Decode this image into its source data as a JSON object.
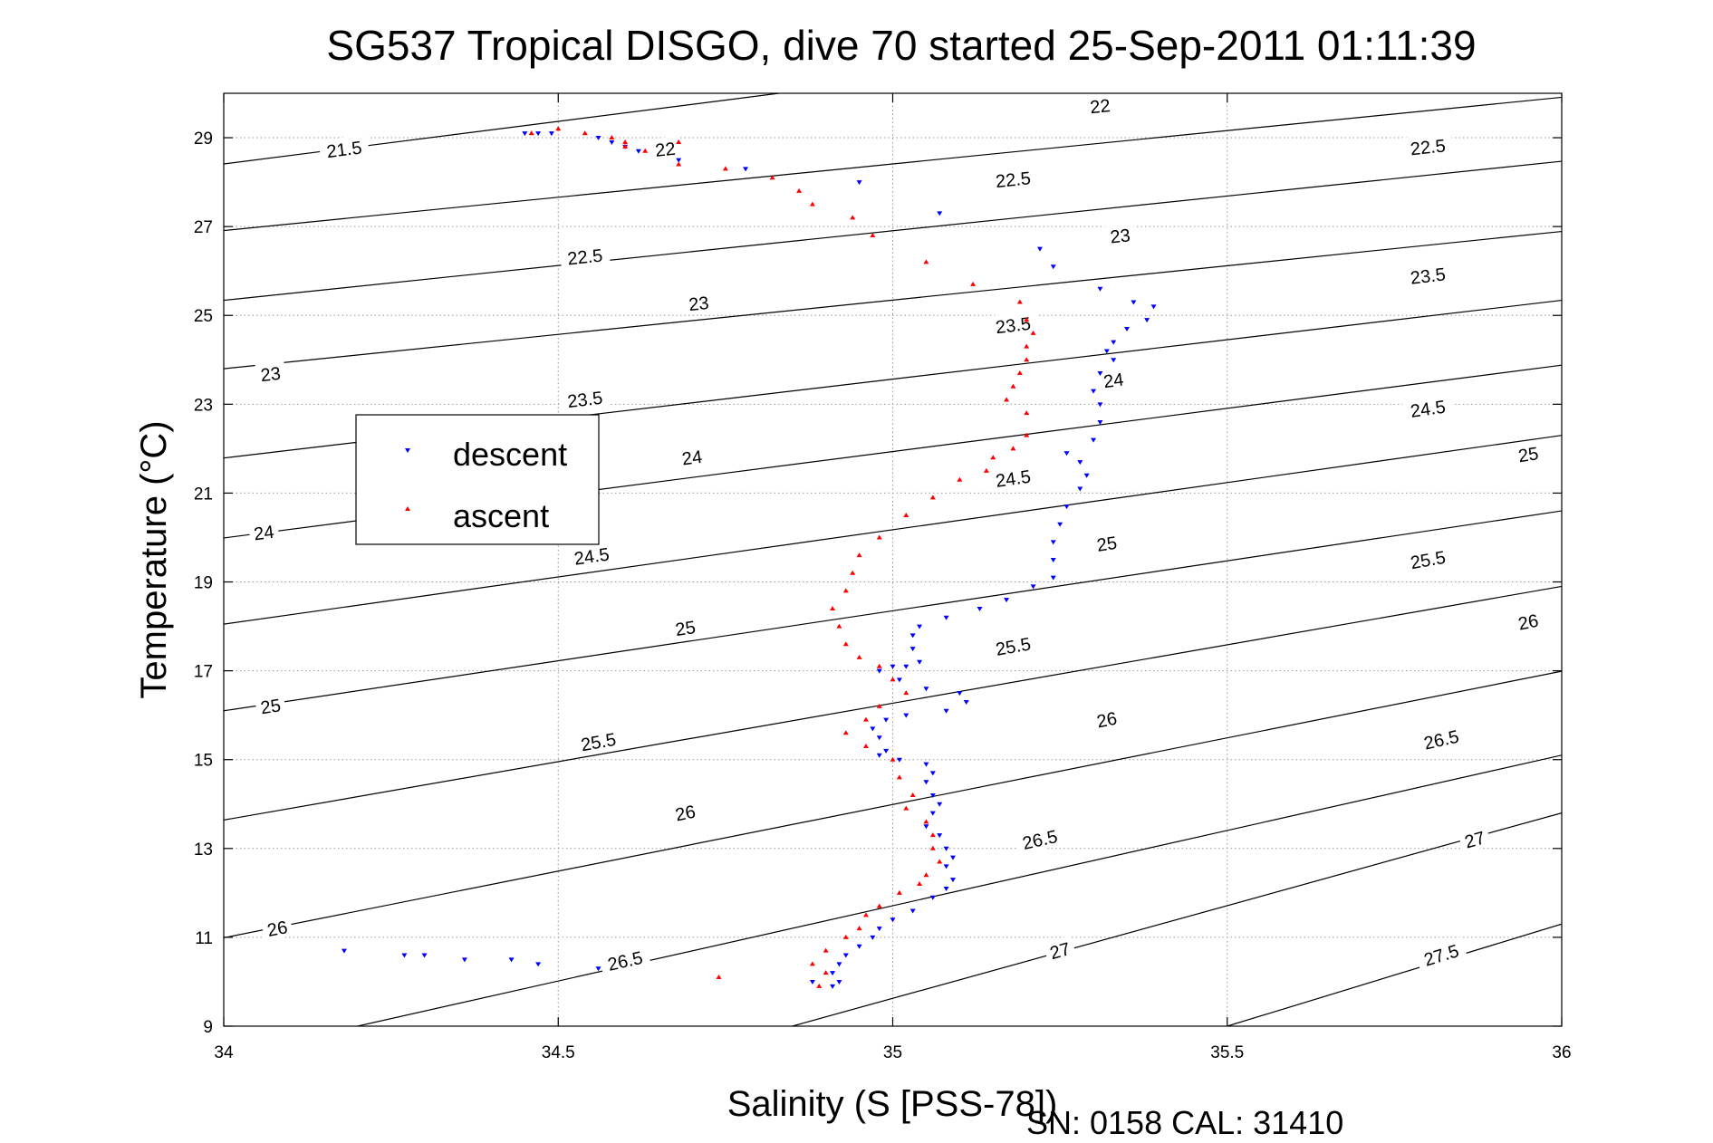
{
  "footer": {
    "serial": "SN: 0158  CAL: 31410"
  },
  "chart_data": {
    "type": "scatter",
    "title": "SG537 Tropical DISGO, dive 70 started 25-Sep-2011 01:11:39",
    "xlabel": "Salinity (S [PSS-78])",
    "ylabel": "Temperature (°C)",
    "xlim": [
      34,
      36
    ],
    "ylim": [
      9,
      30
    ],
    "xticks": [
      34,
      34.5,
      35,
      35.5,
      36
    ],
    "xtick_labels": [
      "34",
      "34.5",
      "35",
      "35.5",
      "36"
    ],
    "yticks": [
      9,
      11,
      13,
      15,
      17,
      19,
      21,
      23,
      25,
      27,
      29
    ],
    "ytick_labels": [
      "9",
      "11",
      "13",
      "15",
      "17",
      "19",
      "21",
      "23",
      "25",
      "27",
      "29"
    ],
    "grid": true,
    "legend": {
      "placement": "center-left",
      "entries": [
        "descent",
        "ascent"
      ]
    },
    "series": [
      {
        "name": "descent",
        "color": "#0000ff",
        "marker": "triangle-down",
        "points": [
          [
            34.45,
            29.1
          ],
          [
            34.47,
            29.1
          ],
          [
            34.49,
            29.1
          ],
          [
            34.56,
            29.0
          ],
          [
            34.58,
            28.9
          ],
          [
            34.6,
            28.8
          ],
          [
            34.62,
            28.7
          ],
          [
            34.68,
            28.5
          ],
          [
            34.78,
            28.3
          ],
          [
            34.95,
            28.0
          ],
          [
            35.07,
            27.3
          ],
          [
            35.22,
            26.5
          ],
          [
            35.24,
            26.1
          ],
          [
            35.31,
            25.6
          ],
          [
            35.36,
            25.3
          ],
          [
            35.39,
            25.2
          ],
          [
            35.38,
            24.9
          ],
          [
            35.35,
            24.7
          ],
          [
            35.33,
            24.4
          ],
          [
            35.32,
            24.2
          ],
          [
            35.33,
            24.0
          ],
          [
            35.31,
            23.7
          ],
          [
            35.3,
            23.3
          ],
          [
            35.31,
            23.0
          ],
          [
            35.31,
            22.6
          ],
          [
            35.3,
            22.2
          ],
          [
            35.26,
            21.9
          ],
          [
            35.28,
            21.7
          ],
          [
            35.29,
            21.4
          ],
          [
            35.28,
            21.1
          ],
          [
            35.26,
            20.7
          ],
          [
            35.25,
            20.3
          ],
          [
            35.24,
            19.9
          ],
          [
            35.24,
            19.5
          ],
          [
            35.24,
            19.1
          ],
          [
            35.21,
            18.9
          ],
          [
            35.17,
            18.6
          ],
          [
            35.13,
            18.4
          ],
          [
            35.08,
            18.2
          ],
          [
            35.04,
            18.0
          ],
          [
            35.03,
            17.8
          ],
          [
            35.03,
            17.5
          ],
          [
            35.04,
            17.2
          ],
          [
            35.02,
            17.1
          ],
          [
            35.0,
            17.1
          ],
          [
            34.98,
            17.0
          ],
          [
            35.01,
            16.8
          ],
          [
            35.05,
            16.6
          ],
          [
            35.1,
            16.5
          ],
          [
            35.11,
            16.3
          ],
          [
            35.08,
            16.1
          ],
          [
            35.02,
            16.0
          ],
          [
            34.99,
            15.9
          ],
          [
            34.97,
            15.7
          ],
          [
            34.98,
            15.5
          ],
          [
            34.99,
            15.2
          ],
          [
            34.98,
            15.1
          ],
          [
            35.01,
            15.0
          ],
          [
            35.05,
            14.9
          ],
          [
            35.06,
            14.7
          ],
          [
            35.05,
            14.5
          ],
          [
            35.06,
            14.2
          ],
          [
            35.07,
            14.0
          ],
          [
            35.06,
            13.8
          ],
          [
            35.05,
            13.5
          ],
          [
            35.07,
            13.3
          ],
          [
            35.08,
            13.0
          ],
          [
            35.09,
            12.8
          ],
          [
            35.08,
            12.6
          ],
          [
            35.09,
            12.3
          ],
          [
            35.08,
            12.1
          ],
          [
            35.06,
            11.9
          ],
          [
            35.03,
            11.6
          ],
          [
            35.0,
            11.4
          ],
          [
            34.98,
            11.2
          ],
          [
            34.97,
            11.0
          ],
          [
            34.95,
            10.8
          ],
          [
            34.93,
            10.6
          ],
          [
            34.92,
            10.4
          ],
          [
            34.91,
            10.2
          ],
          [
            34.92,
            10.0
          ],
          [
            34.91,
            9.9
          ],
          [
            34.88,
            10.0
          ],
          [
            34.56,
            10.3
          ],
          [
            34.47,
            10.4
          ],
          [
            34.43,
            10.5
          ],
          [
            34.36,
            10.5
          ],
          [
            34.3,
            10.6
          ],
          [
            34.27,
            10.6
          ],
          [
            34.18,
            10.7
          ]
        ]
      },
      {
        "name": "ascent",
        "color": "#ff0000",
        "marker": "triangle-up",
        "points": [
          [
            34.46,
            29.1
          ],
          [
            34.5,
            29.2
          ],
          [
            34.54,
            29.1
          ],
          [
            34.58,
            29.0
          ],
          [
            34.6,
            28.9
          ],
          [
            34.6,
            28.8
          ],
          [
            34.63,
            28.7
          ],
          [
            34.68,
            28.9
          ],
          [
            34.68,
            28.4
          ],
          [
            34.75,
            28.3
          ],
          [
            34.82,
            28.1
          ],
          [
            34.86,
            27.8
          ],
          [
            34.88,
            27.5
          ],
          [
            34.94,
            27.2
          ],
          [
            34.97,
            26.8
          ],
          [
            35.05,
            26.2
          ],
          [
            35.12,
            25.7
          ],
          [
            35.19,
            25.3
          ],
          [
            35.2,
            24.9
          ],
          [
            35.21,
            24.6
          ],
          [
            35.2,
            24.3
          ],
          [
            35.2,
            24.0
          ],
          [
            35.19,
            23.7
          ],
          [
            35.18,
            23.4
          ],
          [
            35.17,
            23.1
          ],
          [
            35.2,
            22.8
          ],
          [
            35.2,
            22.3
          ],
          [
            35.18,
            22.0
          ],
          [
            35.15,
            21.8
          ],
          [
            35.14,
            21.5
          ],
          [
            35.1,
            21.3
          ],
          [
            35.06,
            20.9
          ],
          [
            35.02,
            20.5
          ],
          [
            34.98,
            20.0
          ],
          [
            34.95,
            19.6
          ],
          [
            34.94,
            19.2
          ],
          [
            34.93,
            18.8
          ],
          [
            34.91,
            18.4
          ],
          [
            34.92,
            18.0
          ],
          [
            34.93,
            17.6
          ],
          [
            34.95,
            17.3
          ],
          [
            34.98,
            17.1
          ],
          [
            35.0,
            16.8
          ],
          [
            35.02,
            16.5
          ],
          [
            34.98,
            16.2
          ],
          [
            34.96,
            15.9
          ],
          [
            34.93,
            15.6
          ],
          [
            34.96,
            15.3
          ],
          [
            35.0,
            15.0
          ],
          [
            35.01,
            14.6
          ],
          [
            35.03,
            14.2
          ],
          [
            35.02,
            13.9
          ],
          [
            35.05,
            13.6
          ],
          [
            35.06,
            13.3
          ],
          [
            35.06,
            13.0
          ],
          [
            35.07,
            12.7
          ],
          [
            35.05,
            12.4
          ],
          [
            35.04,
            12.2
          ],
          [
            35.01,
            12.0
          ],
          [
            34.98,
            11.7
          ],
          [
            34.96,
            11.5
          ],
          [
            34.95,
            11.2
          ],
          [
            34.93,
            11.0
          ],
          [
            34.9,
            10.7
          ],
          [
            34.88,
            10.4
          ],
          [
            34.9,
            10.2
          ],
          [
            34.89,
            9.9
          ],
          [
            34.74,
            10.1
          ]
        ]
      }
    ],
    "contour_lines": [
      {
        "sigma": "21.5",
        "p1": [
          34.0,
          28.41
        ],
        "p2": [
          34.83,
          30.0
        ],
        "label_at": [
          34.18,
          28.74
        ]
      },
      {
        "sigma": "22",
        "p1": [
          34.0,
          26.91
        ],
        "p2": [
          36.0,
          29.91
        ],
        "label_at": [
          35.31,
          29.71
        ]
      },
      {
        "sigma": "22",
        "p1": [
          34.66,
          28.74
        ],
        "p2": [
          34.66,
          28.74
        ],
        "label_at": [
          34.66,
          28.74
        ],
        "label_only": true
      },
      {
        "sigma": "22.5",
        "p1": [
          34.0,
          25.34
        ],
        "p2": [
          36.0,
          28.47
        ],
        "label_at": [
          34.54,
          26.32
        ]
      },
      {
        "sigma": "22.5",
        "p1": [
          35.18,
          28.06
        ],
        "p2": [
          35.18,
          28.06
        ],
        "label_at": [
          35.18,
          28.06
        ],
        "label_only": true
      },
      {
        "sigma": "22.5",
        "p1": [
          35.8,
          28.79
        ],
        "p2": [
          35.8,
          28.79
        ],
        "label_at": [
          35.8,
          28.79
        ],
        "label_only": true
      },
      {
        "sigma": "23",
        "p1": [
          34.0,
          23.8
        ],
        "p2": [
          36.0,
          26.89
        ],
        "label_at": [
          34.71,
          25.27
        ]
      },
      {
        "sigma": "23",
        "p1": [
          35.34,
          26.79
        ],
        "p2": [
          35.34,
          26.79
        ],
        "label_at": [
          35.34,
          26.79
        ],
        "label_only": true
      },
      {
        "sigma": "23",
        "p1": [
          34.07,
          23.68
        ],
        "p2": [
          34.07,
          23.68
        ],
        "label_at": [
          34.07,
          23.68
        ],
        "label_only": true
      },
      {
        "sigma": "23.5",
        "p1": [
          34.0,
          21.79
        ],
        "p2": [
          36.0,
          25.34
        ],
        "label_at": [
          34.54,
          23.11
        ]
      },
      {
        "sigma": "23.5",
        "p1": [
          35.18,
          24.78
        ],
        "p2": [
          35.18,
          24.78
        ],
        "label_at": [
          35.18,
          24.78
        ],
        "label_only": true
      },
      {
        "sigma": "23.5",
        "p1": [
          35.8,
          25.89
        ],
        "p2": [
          35.8,
          25.89
        ],
        "label_at": [
          35.8,
          25.89
        ],
        "label_only": true
      },
      {
        "sigma": "24",
        "p1": [
          34.0,
          19.99
        ],
        "p2": [
          36.0,
          23.88
        ],
        "label_at": [
          34.7,
          21.8
        ]
      },
      {
        "sigma": "24",
        "p1": [
          35.33,
          23.54
        ],
        "p2": [
          35.33,
          23.54
        ],
        "label_at": [
          35.33,
          23.54
        ],
        "label_only": true
      },
      {
        "sigma": "24",
        "p1": [
          34.06,
          20.11
        ],
        "p2": [
          34.06,
          20.11
        ],
        "label_at": [
          34.06,
          20.11
        ],
        "label_only": true
      },
      {
        "sigma": "24.5",
        "p1": [
          34.0,
          18.05
        ],
        "p2": [
          36.0,
          22.3
        ],
        "label_at": [
          34.55,
          19.58
        ]
      },
      {
        "sigma": "24.5",
        "p1": [
          35.18,
          21.33
        ],
        "p2": [
          35.18,
          21.33
        ],
        "label_at": [
          35.18,
          21.33
        ],
        "label_only": true
      },
      {
        "sigma": "24.5",
        "p1": [
          35.8,
          22.9
        ],
        "p2": [
          35.8,
          22.9
        ],
        "label_at": [
          35.8,
          22.9
        ],
        "label_only": true
      },
      {
        "sigma": "25",
        "p1": [
          34.0,
          16.1
        ],
        "p2": [
          36.0,
          20.6
        ],
        "label_at": [
          34.69,
          17.96
        ]
      },
      {
        "sigma": "25",
        "p1": [
          35.32,
          19.86
        ],
        "p2": [
          35.32,
          19.86
        ],
        "label_at": [
          35.32,
          19.86
        ],
        "label_only": true
      },
      {
        "sigma": "25",
        "p1": [
          35.95,
          21.87
        ],
        "p2": [
          35.95,
          21.87
        ],
        "label_at": [
          35.95,
          21.87
        ],
        "label_only": true
      },
      {
        "sigma": "25",
        "p1": [
          34.07,
          16.2
        ],
        "p2": [
          34.07,
          16.2
        ],
        "label_at": [
          34.07,
          16.2
        ],
        "label_only": true
      },
      {
        "sigma": "25.5",
        "p1": [
          34.0,
          13.64
        ],
        "p2": [
          36.0,
          18.9
        ],
        "label_at": [
          34.56,
          15.4
        ]
      },
      {
        "sigma": "25.5",
        "p1": [
          35.18,
          17.55
        ],
        "p2": [
          35.18,
          17.55
        ],
        "label_at": [
          35.18,
          17.55
        ],
        "label_only": true
      },
      {
        "sigma": "25.5",
        "p1": [
          35.8,
          19.5
        ],
        "p2": [
          35.8,
          19.5
        ],
        "label_at": [
          35.8,
          19.5
        ],
        "label_only": true
      },
      {
        "sigma": "26",
        "p1": [
          34.0,
          10.99
        ],
        "p2": [
          36.0,
          16.99
        ],
        "label_at": [
          34.69,
          13.8
        ]
      },
      {
        "sigma": "26",
        "p1": [
          35.32,
          15.9
        ],
        "p2": [
          35.32,
          15.9
        ],
        "label_at": [
          35.32,
          15.9
        ],
        "label_only": true
      },
      {
        "sigma": "26",
        "p1": [
          35.95,
          18.1
        ],
        "p2": [
          35.95,
          18.1
        ],
        "label_at": [
          35.95,
          18.1
        ],
        "label_only": true
      },
      {
        "sigma": "26",
        "p1": [
          34.08,
          11.2
        ],
        "p2": [
          34.08,
          11.2
        ],
        "label_at": [
          34.08,
          11.2
        ],
        "label_only": true
      },
      {
        "sigma": "26.5",
        "p1": [
          34.2,
          9.0
        ],
        "p2": [
          36.0,
          15.1
        ],
        "label_at": [
          34.6,
          10.47
        ]
      },
      {
        "sigma": "26.5",
        "p1": [
          35.22,
          13.2
        ],
        "p2": [
          35.22,
          13.2
        ],
        "label_at": [
          35.22,
          13.2
        ],
        "label_only": true
      },
      {
        "sigma": "26.5",
        "p1": [
          35.82,
          15.45
        ],
        "p2": [
          35.82,
          15.45
        ],
        "label_at": [
          35.82,
          15.45
        ],
        "label_only": true
      },
      {
        "sigma": "27",
        "p1": [
          34.85,
          9.0
        ],
        "p2": [
          36.0,
          13.8
        ],
        "label_at": [
          35.25,
          10.7
        ]
      },
      {
        "sigma": "27",
        "p1": [
          35.87,
          13.2
        ],
        "p2": [
          35.87,
          13.2
        ],
        "label_at": [
          35.87,
          13.2
        ],
        "label_only": true
      },
      {
        "sigma": "27.5",
        "p1": [
          35.5,
          9.0
        ],
        "p2": [
          36.0,
          11.3
        ],
        "label_at": [
          35.82,
          10.6
        ]
      }
    ]
  }
}
